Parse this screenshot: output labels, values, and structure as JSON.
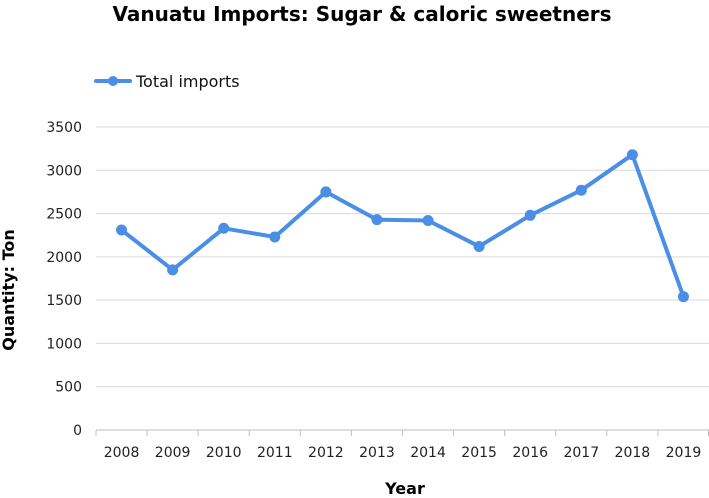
{
  "chart_data": {
    "type": "line",
    "title": "Vanuatu Imports: Sugar & caloric sweetners",
    "xlabel": "Year",
    "ylabel": "Quantity: Ton",
    "categories": [
      "2008",
      "2009",
      "2010",
      "2011",
      "2012",
      "2013",
      "2014",
      "2015",
      "2016",
      "2017",
      "2018",
      "2019"
    ],
    "series": [
      {
        "name": "Total imports",
        "values": [
          2310,
          1850,
          2330,
          2230,
          2750,
          2430,
          2420,
          2120,
          2480,
          2770,
          3180,
          1540
        ]
      }
    ],
    "ylim": [
      0,
      3500
    ],
    "yticks": [
      0,
      500,
      1000,
      1500,
      2000,
      2500,
      3000,
      3500
    ],
    "grid": true,
    "legend_position": "top-left",
    "colors": {
      "line": "#4a8ee6",
      "grid": "#d9d9d9",
      "axis": "#bfbfbf"
    }
  }
}
